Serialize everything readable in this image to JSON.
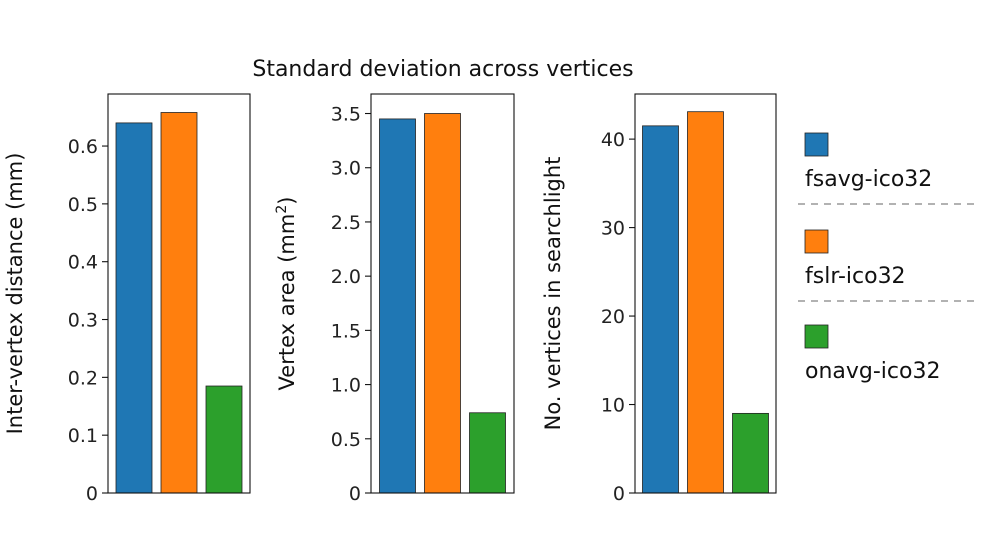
{
  "title": "Standard deviation across vertices",
  "chart_data": [
    {
      "type": "bar",
      "categories": [
        "fsavg-ico32",
        "fslr-ico32",
        "onavg-ico32"
      ],
      "values": [
        0.64,
        0.658,
        0.185
      ],
      "ylabel": "Inter-vertex distance (mm)",
      "ylim": [
        0,
        0.69
      ],
      "yticks": [
        0,
        0.1,
        0.2,
        0.3,
        0.4,
        0.5,
        0.6
      ],
      "ytick_labels": [
        "0",
        "0.1",
        "0.2",
        "0.3",
        "0.4",
        "0.5",
        "0.6"
      ]
    },
    {
      "type": "bar",
      "categories": [
        "fsavg-ico32",
        "fslr-ico32",
        "onavg-ico32"
      ],
      "values": [
        3.45,
        3.5,
        0.74
      ],
      "ylabel_main": "Vertex area (mm",
      "ylabel_sup": "2",
      "ylabel_end": ")",
      "ylim": [
        0,
        3.68
      ],
      "yticks": [
        0,
        0.5,
        1.0,
        1.5,
        2.0,
        2.5,
        3.0,
        3.5
      ],
      "ytick_labels": [
        "0",
        "0.5",
        "1.0",
        "1.5",
        "2.0",
        "2.5",
        "3.0",
        "3.5"
      ]
    },
    {
      "type": "bar",
      "categories": [
        "fsavg-ico32",
        "fslr-ico32",
        "onavg-ico32"
      ],
      "values": [
        41.5,
        43.1,
        9.0
      ],
      "ylabel": "No. vertices in searchlight",
      "ylim": [
        0,
        45.1
      ],
      "yticks": [
        0,
        10,
        20,
        30,
        40
      ],
      "ytick_labels": [
        "0",
        "10",
        "20",
        "30",
        "40"
      ]
    }
  ],
  "legend": {
    "position": "right",
    "entries": [
      {
        "label": "fsavg-ico32",
        "color": "#1f77b4"
      },
      {
        "label": "fslr-ico32",
        "color": "#ff7f0e"
      },
      {
        "label": "onavg-ico32",
        "color": "#2ca02c"
      }
    ]
  },
  "colors": [
    "#1f77b4",
    "#ff7f0e",
    "#2ca02c"
  ]
}
